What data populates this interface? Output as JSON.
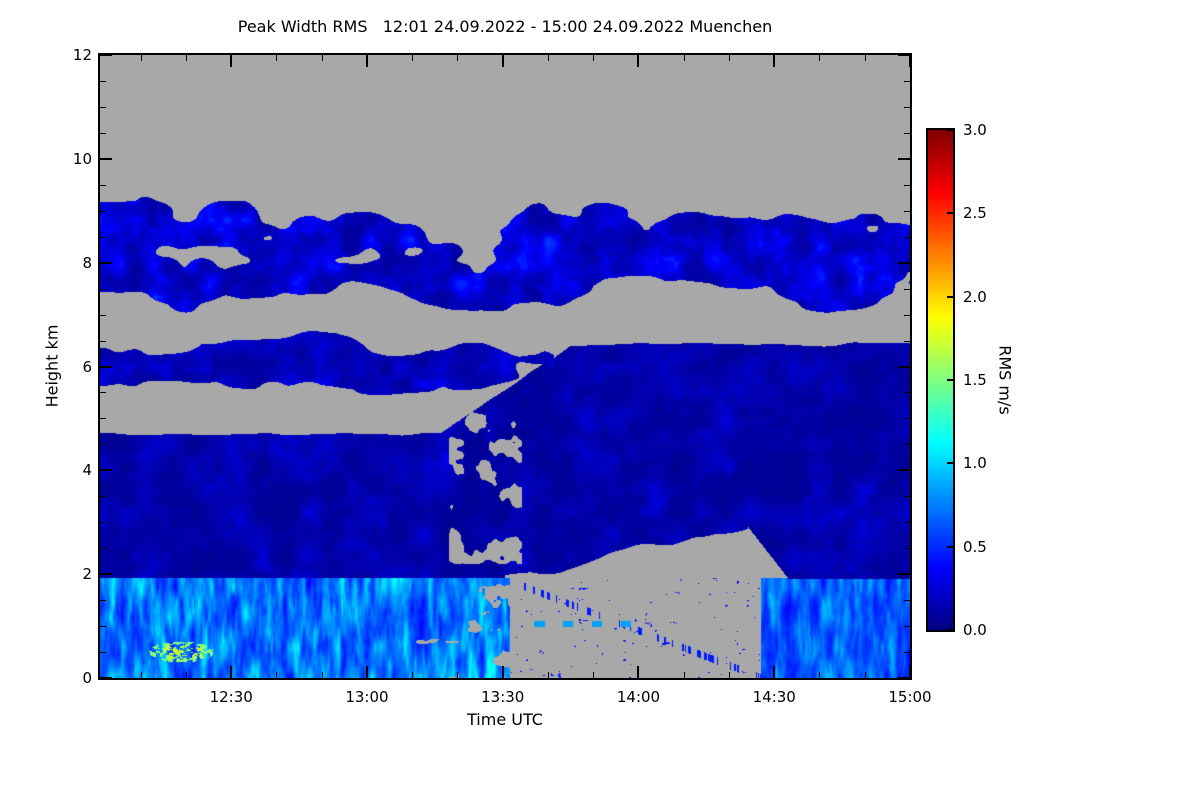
{
  "title": "Peak Width RMS   12:01 24.09.2022 - 15:00 24.09.2022 Muenchen",
  "chart_data": {
    "type": "heatmap",
    "title": "Peak Width RMS   12:01 24.09.2022 - 15:00 24.09.2022 Muenchen",
    "xlabel": "Time UTC",
    "ylabel": "Height km",
    "x_range": [
      "12:01",
      "15:00"
    ],
    "x_total_minutes": 179,
    "x_ticks": [
      "12:30",
      "13:00",
      "13:30",
      "14:00",
      "14:30",
      "15:00"
    ],
    "x_tick_minutes": [
      29,
      59,
      89,
      119,
      149,
      179
    ],
    "y_range": [
      0,
      12
    ],
    "y_ticks": [
      0,
      2,
      4,
      6,
      8,
      10,
      12
    ],
    "colorbar": {
      "label": "RMS m/s",
      "range": [
        0,
        3
      ],
      "ticks": [
        "3.0",
        "2.5",
        "2.0",
        "1.5",
        "1.0",
        "0.5",
        "0.0"
      ],
      "colormap": "jet"
    },
    "no_data_color": "#a8a8a8",
    "grid": false,
    "layers": [
      {
        "name": "upper-cloud-deck",
        "time_frac": [
          0.0,
          1.0
        ],
        "height_km": [
          7.0,
          9.45
        ],
        "rms_range": [
          0.08,
          0.6
        ],
        "coverage": "ragged"
      },
      {
        "name": "mid-cloud-layer",
        "time_frac": [
          0.0,
          0.56
        ],
        "height_km": [
          5.5,
          6.62
        ],
        "rms_range": [
          0.07,
          0.45
        ],
        "coverage": "ragged"
      },
      {
        "name": "main-echo-mass",
        "time_frac": [
          0.0,
          1.0
        ],
        "height_km": [
          1.92,
          4.68
        ],
        "height_km_right": [
          2.9,
          6.45
        ],
        "top_rise_t": [
          0.42,
          0.58
        ],
        "wedge_t": [
          0.5,
          0.8
        ],
        "rms_range": [
          0.05,
          0.4
        ],
        "coverage": "solid"
      },
      {
        "name": "boundary-layer-left",
        "time_frac": [
          0.0,
          0.505
        ],
        "height_km": [
          0.0,
          1.92
        ],
        "rms_range": [
          0.25,
          1.3
        ],
        "coverage": "streaky"
      },
      {
        "name": "boundary-layer-right",
        "time_frac": [
          0.815,
          1.0
        ],
        "height_km": [
          0.0,
          1.9
        ],
        "rms_range": [
          0.25,
          1.1
        ],
        "coverage": "streaky"
      },
      {
        "name": "surface-hotspots",
        "time_frac": [
          0.06,
          0.14
        ],
        "height_km": [
          0.3,
          0.7
        ],
        "rms_range": [
          1.3,
          2.0
        ],
        "coverage": "specks"
      },
      {
        "name": "clear-wedge-specks",
        "time_frac": [
          0.505,
          0.815
        ],
        "height_km": [
          0.0,
          1.9
        ],
        "rms_range": [
          0.3,
          0.8
        ],
        "coverage": "sparse-specks"
      }
    ]
  }
}
